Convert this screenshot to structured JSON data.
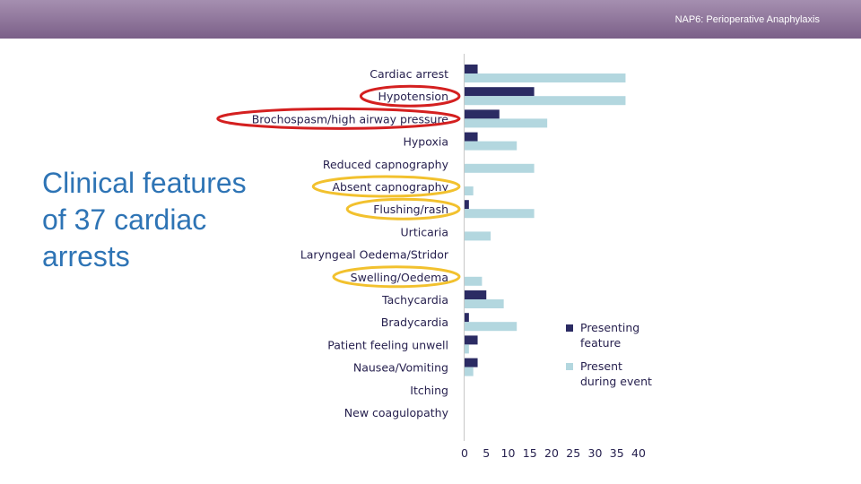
{
  "header": {
    "title": "NAP6: Perioperative Anaphylaxis"
  },
  "slide": {
    "title": "Clinical features of 37 cardiac arrests"
  },
  "colors": {
    "presenting": "#2b2b63",
    "during": "#b3d7df",
    "red_circle": "#d42020",
    "yellow_circle": "#f2c12e"
  },
  "chart_data": {
    "type": "bar",
    "orientation": "horizontal",
    "categories": [
      "Cardiac arrest",
      "Hypotension",
      "Brochospasm/high airway pressure",
      "Hypoxia",
      "Reduced capnography",
      "Absent capnography",
      "Flushing/rash",
      "Urticaria",
      "Laryngeal Oedema/Stridor",
      "Swelling/Oedema",
      "Tachycardia",
      "Bradycardia",
      "Patient feeling unwell",
      "Nausea/Vomiting",
      "Itching",
      "New coagulopathy"
    ],
    "series": [
      {
        "name": "Presenting feature",
        "values": [
          3,
          16,
          8,
          3,
          0,
          0,
          1,
          0,
          0,
          0,
          5,
          1,
          3,
          3,
          0,
          0
        ]
      },
      {
        "name": "Present during event",
        "values": [
          37,
          37,
          19,
          12,
          16,
          2,
          16,
          6,
          0,
          4,
          9,
          12,
          1,
          2,
          0,
          0
        ]
      }
    ],
    "xlim": [
      0,
      40
    ],
    "xticks": [
      "0",
      "5",
      "10",
      "15",
      "20",
      "25",
      "30",
      "35",
      "40"
    ],
    "legend": [
      {
        "series": 0,
        "lines": [
          "Presenting",
          "feature"
        ]
      },
      {
        "series": 1,
        "lines": [
          "Present",
          "during event"
        ]
      }
    ],
    "legend_position": "right",
    "highlights": [
      {
        "category": "Hypotension",
        "color": "red"
      },
      {
        "category": "Brochospasm/high airway pressure",
        "color": "red"
      },
      {
        "category": "Absent capnography",
        "color": "yellow"
      },
      {
        "category": "Flushing/rash",
        "color": "yellow"
      },
      {
        "category": "Swelling/Oedema",
        "color": "yellow"
      }
    ]
  }
}
